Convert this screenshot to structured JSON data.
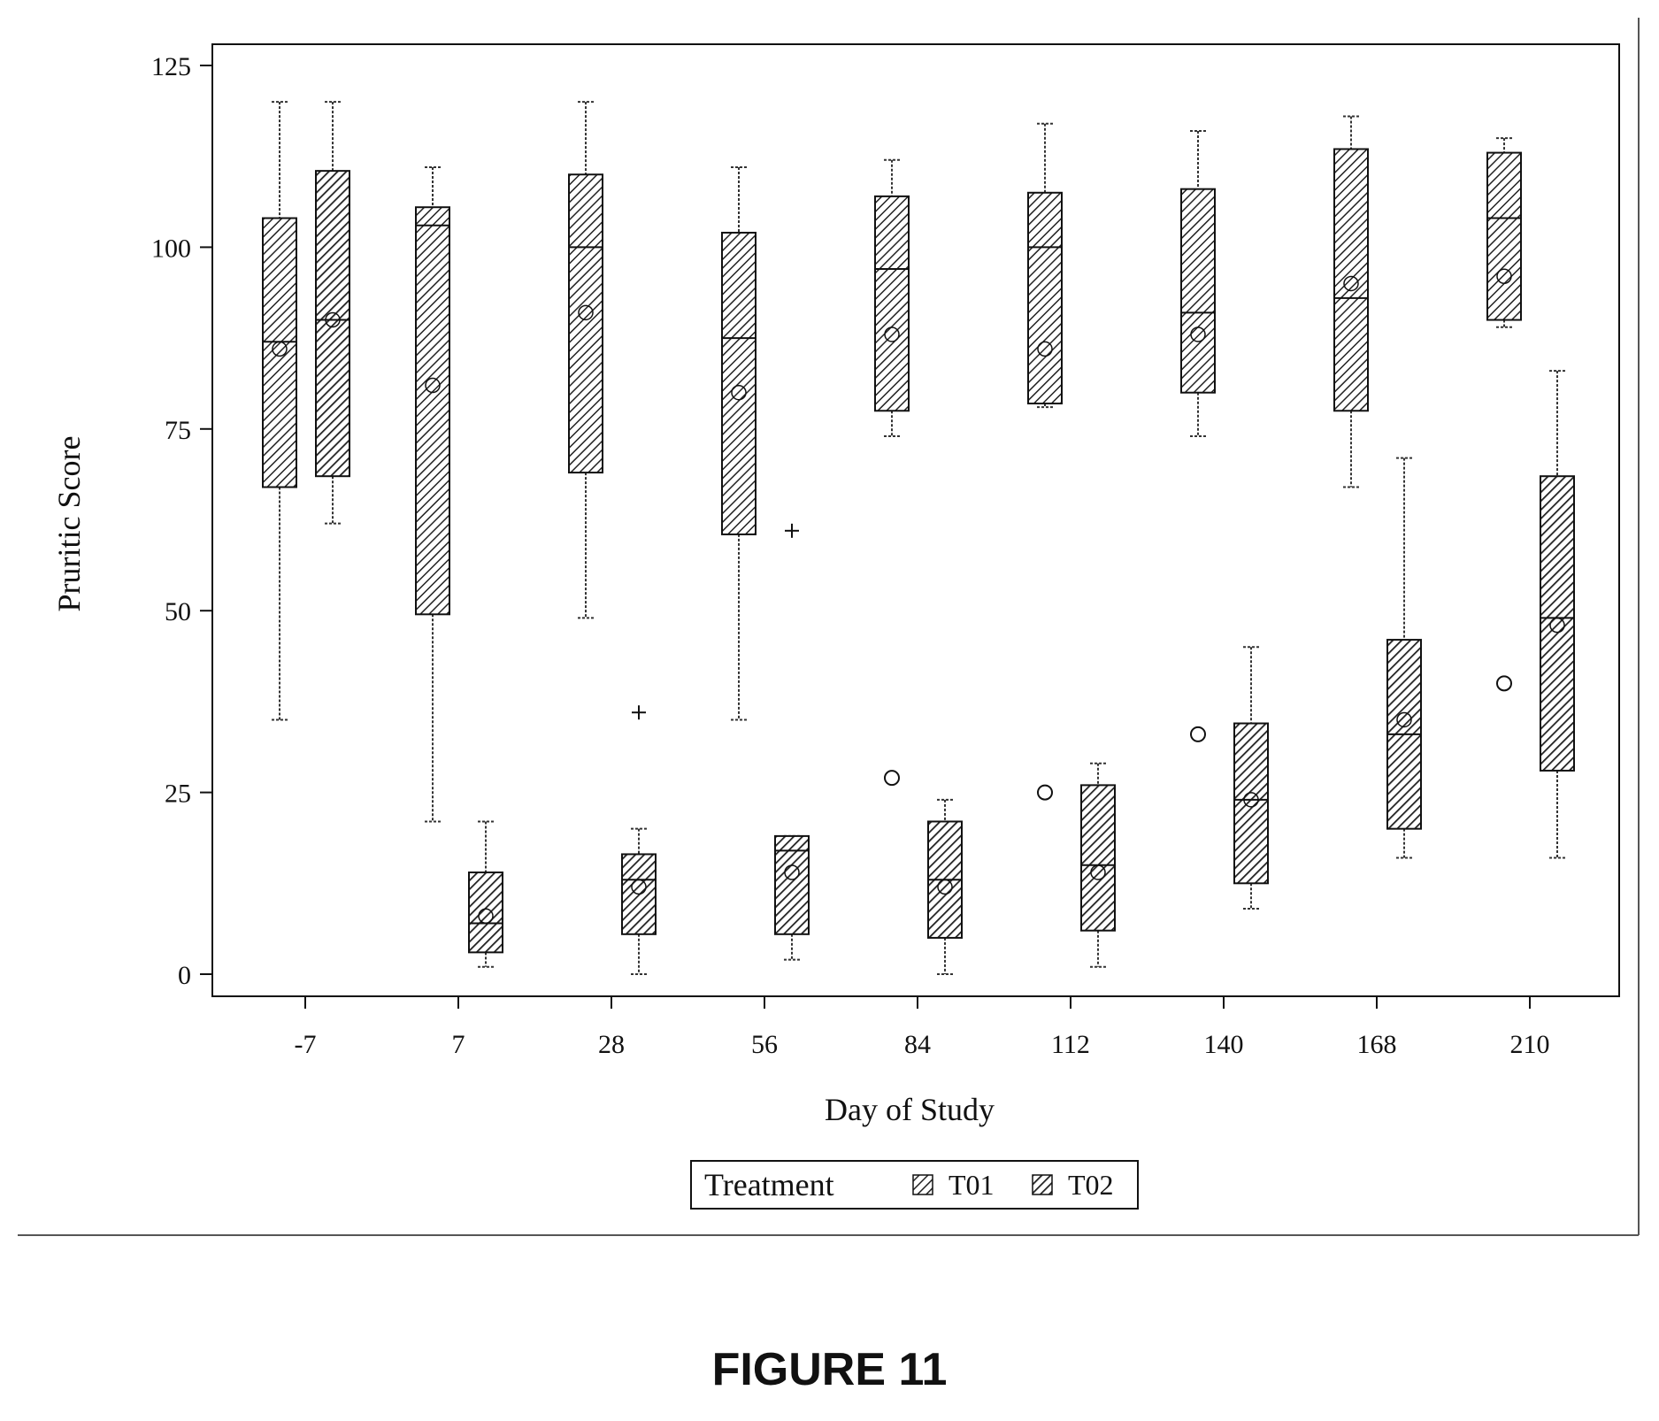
{
  "figure_caption": "FIGURE 11",
  "chart_data": {
    "type": "box",
    "xlabel": "Day of Study",
    "ylabel": "Pruritic Score",
    "ylim": [
      -3,
      128
    ],
    "yticks": [
      0,
      25,
      50,
      75,
      100,
      125
    ],
    "categories": [
      "-7",
      "7",
      "28",
      "56",
      "84",
      "112",
      "140",
      "168",
      "210"
    ],
    "legend": {
      "title": "Treatment",
      "entries": [
        "T01",
        "T02"
      ],
      "position": "bottom-center"
    },
    "grid": false,
    "series": [
      {
        "name": "T01",
        "boxes": [
          {
            "category": "-7",
            "min": 35,
            "q1": 67,
            "median": 87,
            "mean": 86,
            "q3": 104,
            "max": 120,
            "outliers": []
          },
          {
            "category": "7",
            "min": 21,
            "q1": 49.5,
            "median": 103,
            "mean": 81,
            "q3": 105.5,
            "max": 111,
            "outliers": []
          },
          {
            "category": "28",
            "min": 49,
            "q1": 69,
            "median": 100,
            "mean": 91,
            "q3": 110,
            "max": 120,
            "outliers": []
          },
          {
            "category": "56",
            "min": 35,
            "q1": 60.5,
            "median": 87.5,
            "mean": 80,
            "q3": 102,
            "max": 111,
            "outliers": []
          },
          {
            "category": "84",
            "min": 74,
            "q1": 77.5,
            "median": 97,
            "mean": 88,
            "q3": 107,
            "max": 112,
            "outliers": [
              27
            ]
          },
          {
            "category": "112",
            "min": 78,
            "q1": 78.5,
            "median": 100,
            "mean": 86,
            "q3": 107.5,
            "max": 117,
            "outliers": [
              25
            ]
          },
          {
            "category": "140",
            "min": 74,
            "q1": 80,
            "median": 91,
            "mean": 88,
            "q3": 108,
            "max": 116,
            "outliers": [
              33
            ]
          },
          {
            "category": "168",
            "min": 67,
            "q1": 77.5,
            "median": 93,
            "mean": 95,
            "q3": 113.5,
            "max": 118,
            "outliers": []
          },
          {
            "category": "210",
            "min": 89,
            "q1": 90,
            "median": 104,
            "mean": 96,
            "q3": 113,
            "max": 115,
            "outliers": [
              40
            ]
          }
        ]
      },
      {
        "name": "T02",
        "boxes": [
          {
            "category": "-7",
            "min": 62,
            "q1": 68.5,
            "median": 90,
            "mean": 90,
            "q3": 110.5,
            "max": 120,
            "outliers": []
          },
          {
            "category": "7",
            "min": 1,
            "q1": 3,
            "median": 7,
            "mean": 8,
            "q3": 14,
            "max": 21,
            "outliers": []
          },
          {
            "category": "28",
            "min": 0,
            "q1": 5.5,
            "median": 13,
            "mean": 12,
            "q3": 16.5,
            "max": 20,
            "outliers": [
              36
            ]
          },
          {
            "category": "56",
            "min": 2,
            "q1": 5.5,
            "median": 17,
            "mean": 14,
            "q3": 19,
            "max": 19,
            "outliers": [
              61
            ]
          },
          {
            "category": "84",
            "min": 0,
            "q1": 5,
            "median": 13,
            "mean": 12,
            "q3": 21,
            "max": 24,
            "outliers": []
          },
          {
            "category": "112",
            "min": 1,
            "q1": 6,
            "median": 15,
            "mean": 14,
            "q3": 26,
            "max": 29,
            "outliers": []
          },
          {
            "category": "140",
            "min": 9,
            "q1": 12.5,
            "median": 24,
            "mean": 24,
            "q3": 34.5,
            "max": 45,
            "outliers": []
          },
          {
            "category": "168",
            "min": 16,
            "q1": 20,
            "median": 33,
            "mean": 35,
            "q3": 46,
            "max": 71,
            "outliers": []
          },
          {
            "category": "210",
            "min": 16,
            "q1": 28,
            "median": 49,
            "mean": 48,
            "q3": 68.5,
            "max": 83,
            "outliers": []
          }
        ]
      }
    ]
  }
}
